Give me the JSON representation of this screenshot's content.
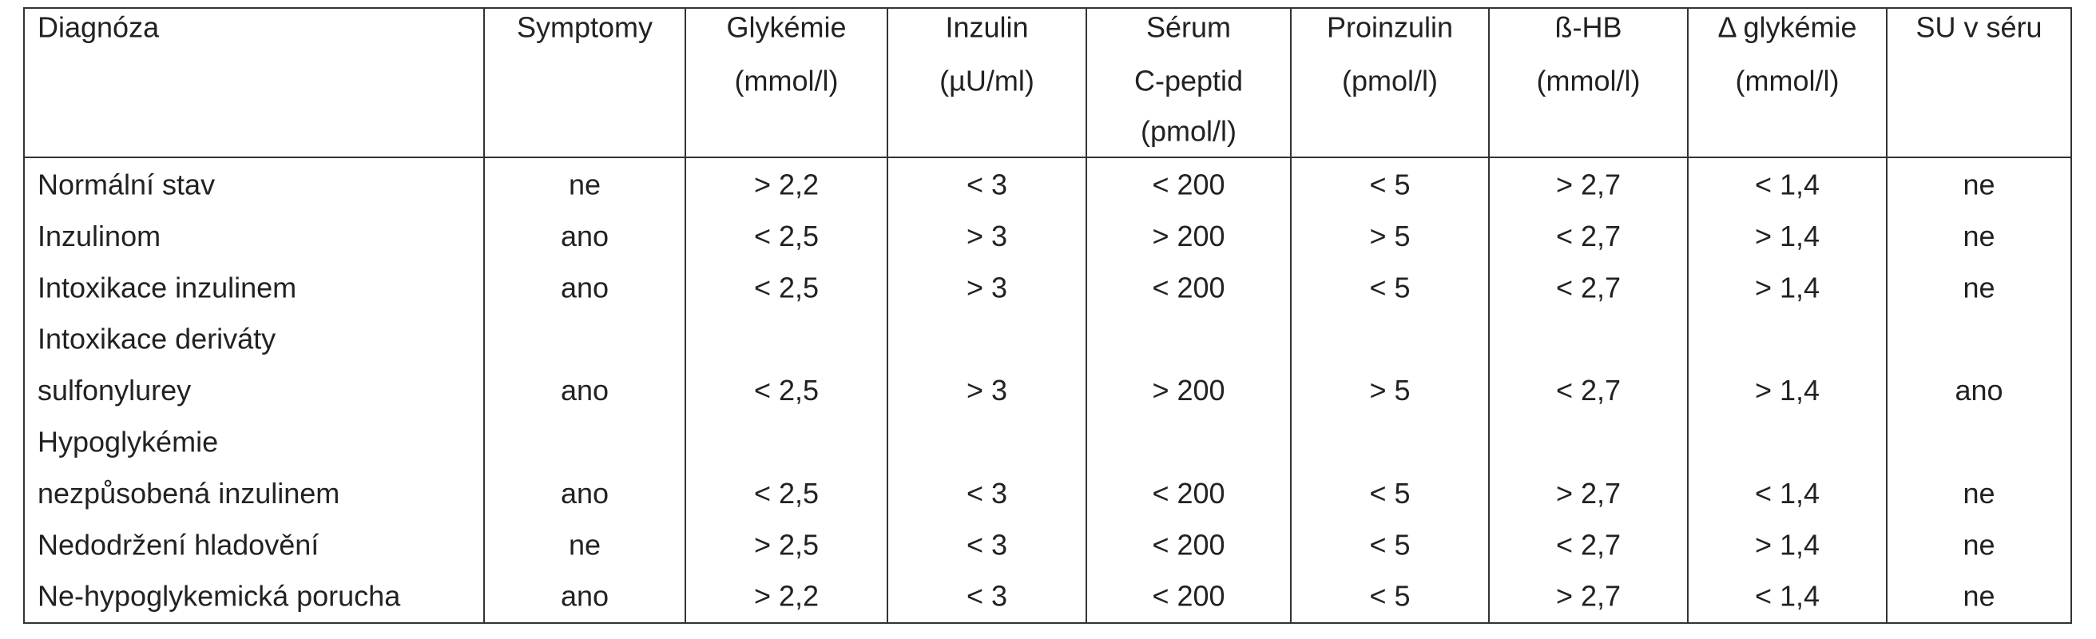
{
  "table": {
    "headers": [
      [
        "Diagnóza"
      ],
      [
        "Symptomy"
      ],
      [
        "Glykémie",
        "(mmol/l)"
      ],
      [
        "Inzulin",
        "(µU/ml)"
      ],
      [
        "Sérum",
        "C-peptid",
        "(pmol/l)"
      ],
      [
        "Proinzulin",
        "(pmol/l)"
      ],
      [
        "ß-HB",
        "(mmol/l)"
      ],
      [
        "Δ glykémie",
        "(mmol/l)"
      ],
      [
        "SU v séru"
      ]
    ],
    "rows": [
      {
        "label": [
          "Normální stav"
        ],
        "cells": [
          "ne",
          "> 2,2",
          "< 3",
          "< 200",
          "< 5",
          "> 2,7",
          "< 1,4",
          "ne"
        ]
      },
      {
        "label": [
          "Inzulinom"
        ],
        "cells": [
          "ano",
          "< 2,5",
          "> 3",
          "> 200",
          "> 5",
          "< 2,7",
          "> 1,4",
          "ne"
        ]
      },
      {
        "label": [
          "Intoxikace inzulinem"
        ],
        "cells": [
          "ano",
          "< 2,5",
          "> 3",
          "< 200",
          "< 5",
          "< 2,7",
          "> 1,4",
          "ne"
        ]
      },
      {
        "label": [
          "Intoxikace deriváty",
          "sulfonylurey"
        ],
        "cells": [
          "ano",
          "< 2,5",
          "> 3",
          "> 200",
          "> 5",
          "< 2,7",
          "> 1,4",
          "ano"
        ]
      },
      {
        "label": [
          "Hypoglykémie",
          "nezpůsobená inzulinem"
        ],
        "cells": [
          "ano",
          "< 2,5",
          "< 3",
          "< 200",
          "< 5",
          "> 2,7",
          "< 1,4",
          "ne"
        ]
      },
      {
        "label": [
          "Nedodržení hladovění"
        ],
        "cells": [
          "ne",
          "> 2,5",
          "< 3",
          "< 200",
          "< 5",
          "< 2,7",
          "> 1,4",
          "ne"
        ]
      },
      {
        "label": [
          "Ne-hypoglykemická porucha"
        ],
        "cells": [
          "ano",
          "> 2,2",
          "< 3",
          "< 200",
          "< 5",
          "> 2,7",
          "< 1,4",
          "ne"
        ]
      }
    ]
  }
}
